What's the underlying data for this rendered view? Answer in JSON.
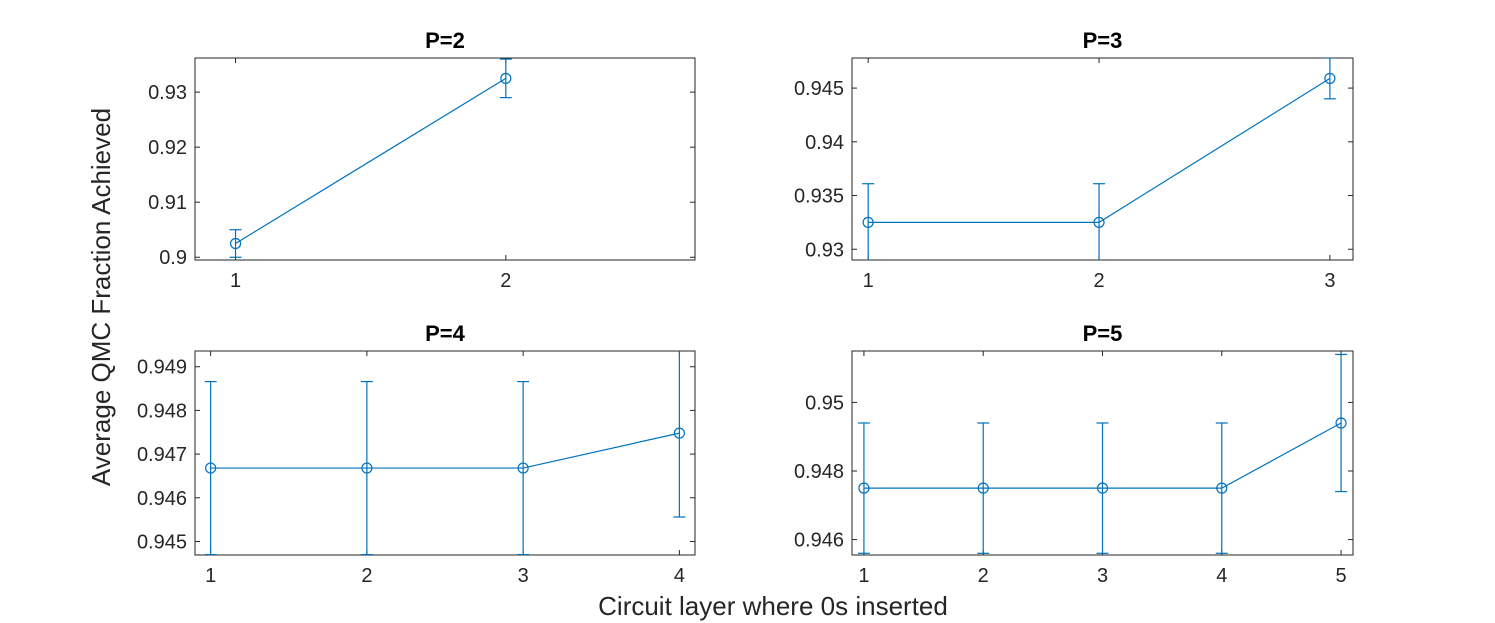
{
  "figure": {
    "xlabel": "Circuit layer where 0s inserted",
    "ylabel": "Average QMC Fraction Achieved",
    "line_color": "#0072BD"
  },
  "chart_data": [
    {
      "type": "line",
      "title": "P=2",
      "x": [
        1,
        2
      ],
      "y": [
        0.9025,
        0.9325
      ],
      "error": [
        0.0025,
        0.0035
      ],
      "xlim": [
        0.85,
        2.7
      ],
      "ylim": [
        0.8995,
        0.9362
      ],
      "xticks": [
        1,
        2
      ],
      "xtick_labels": [
        "1",
        "2"
      ],
      "yticks": [
        0.9,
        0.91,
        0.92,
        0.93
      ],
      "ytick_labels": [
        "0.9",
        "0.91",
        "0.92",
        "0.93"
      ],
      "grid": false,
      "marker": "open-circle"
    },
    {
      "type": "line",
      "title": "P=3",
      "x": [
        1,
        2,
        3
      ],
      "y": [
        0.9325,
        0.9325,
        0.9459
      ],
      "error": [
        0.0036,
        0.0036,
        0.0019
      ],
      "xlim": [
        0.93,
        3.1
      ],
      "ylim": [
        0.929,
        0.9478
      ],
      "xticks": [
        1,
        2,
        3
      ],
      "xtick_labels": [
        "1",
        "2",
        "3"
      ],
      "yticks": [
        0.93,
        0.935,
        0.94,
        0.945
      ],
      "ytick_labels": [
        "0.93",
        "0.935",
        "0.94",
        "0.945"
      ],
      "grid": false,
      "marker": "open-circle"
    },
    {
      "type": "line",
      "title": "P=4",
      "x": [
        1,
        2,
        3,
        4
      ],
      "y": [
        0.94668,
        0.94668,
        0.94668,
        0.94748
      ],
      "error": [
        0.00198,
        0.00198,
        0.00198,
        0.00192
      ],
      "xlim": [
        0.9,
        4.1
      ],
      "ylim": [
        0.94469,
        0.94936
      ],
      "xticks": [
        1,
        2,
        3,
        4
      ],
      "xtick_labels": [
        "1",
        "2",
        "3",
        "4"
      ],
      "yticks": [
        0.945,
        0.946,
        0.947,
        0.948,
        0.949
      ],
      "ytick_labels": [
        "0.945",
        "0.946",
        "0.947",
        "0.948",
        "0.949"
      ],
      "grid": false,
      "marker": "open-circle"
    },
    {
      "type": "line",
      "title": "P=5",
      "x": [
        1,
        2,
        3,
        4,
        5
      ],
      "y": [
        0.9475,
        0.9475,
        0.9475,
        0.9475,
        0.9494
      ],
      "error": [
        0.0019,
        0.0019,
        0.0019,
        0.0019,
        0.002
      ],
      "xlim": [
        0.9,
        5.1
      ],
      "ylim": [
        0.94555,
        0.9515
      ],
      "xticks": [
        1,
        2,
        3,
        4,
        5
      ],
      "xtick_labels": [
        "1",
        "2",
        "3",
        "4",
        "5"
      ],
      "yticks": [
        0.946,
        0.948,
        0.95
      ],
      "ytick_labels": [
        "0.946",
        "0.948",
        "0.95"
      ],
      "grid": false,
      "marker": "open-circle"
    }
  ]
}
